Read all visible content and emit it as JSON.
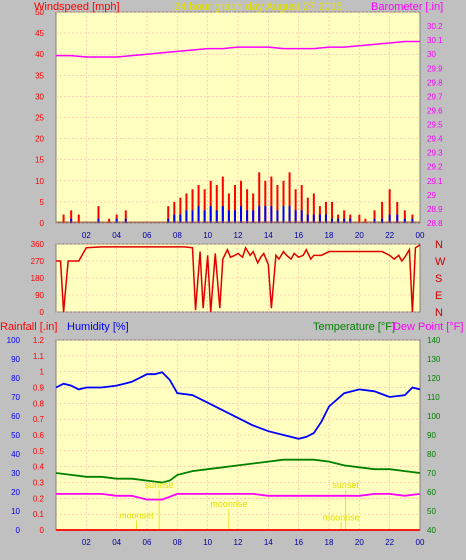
{
  "header": {
    "left_title": "Windspeed [mph]",
    "center_title": "24 hour graph day   August 27 2015",
    "right_title": "Barometer [.in]"
  },
  "bottom_header": {
    "rainfall": "Rainfall [.in]",
    "humidity": "Humidity [%]",
    "temperature": "Temperature [°F]",
    "dewpoint": "Dew Point [°F]"
  },
  "hour_ticks": [
    "02",
    "04",
    "06",
    "08",
    "10",
    "12",
    "14",
    "16",
    "18",
    "20",
    "22",
    "00"
  ],
  "annotations": [
    {
      "text": "sunrise",
      "hour": 6.8,
      "value": 22
    },
    {
      "text": "sunset",
      "hour": 19.1,
      "value": 22
    },
    {
      "text": "moonset",
      "hour": 5.3,
      "value": 6
    },
    {
      "text": "moonrise",
      "hour": 11.4,
      "value": 12
    },
    {
      "text": "moonrise",
      "hour": 18.8,
      "value": 5
    }
  ],
  "colors": {
    "background": "#c0c0c0",
    "plot": "#ffffc0",
    "grid": "#ffb0b0",
    "windspeed": "#ff0000",
    "gust": "#ff0000",
    "wind_avg": "#0000ff",
    "barometer": "#ff00ff",
    "direction": "#e00000",
    "humidity": "#0000ff",
    "temperature": "#008000",
    "dewpoint": "#ff00ff",
    "annotation": "#e0e000",
    "left_label": "#ff0000",
    "right_label": "#ff00ff"
  },
  "chart_data": [
    {
      "type": "line",
      "title": "24 hour graph day   August 27 2015",
      "ylabel": "Windspeed [mph]",
      "y2label": "Barometer [.in]",
      "xlim": [
        0,
        24
      ],
      "ylim": [
        0,
        50
      ],
      "y_ticks": [
        0,
        5,
        10,
        15,
        20,
        25,
        30,
        35,
        40,
        45,
        50
      ],
      "y2lim": [
        28.8,
        30.3
      ],
      "y2_ticks": [
        "28.8",
        "28.9",
        "29",
        "29.1",
        "29.2",
        "29.3",
        "29.4",
        "29.5",
        "29.6",
        "29.7",
        "29.8",
        "29.9",
        "30",
        "30.1",
        "30.2"
      ],
      "grid": true,
      "series": [
        {
          "name": "Barometer",
          "axis": "y2",
          "x": [
            0,
            1,
            2,
            3,
            4,
            5,
            6,
            7,
            8,
            9,
            10,
            11,
            12,
            13,
            14,
            15,
            16,
            17,
            18,
            19,
            20,
            21,
            22,
            23,
            24
          ],
          "values": [
            29.99,
            29.99,
            29.98,
            29.98,
            29.98,
            29.99,
            30.0,
            30.01,
            30.02,
            30.03,
            30.04,
            30.04,
            30.05,
            30.05,
            30.05,
            30.04,
            30.04,
            30.04,
            30.05,
            30.05,
            30.06,
            30.07,
            30.08,
            30.09,
            30.09
          ]
        },
        {
          "name": "Wind Gust",
          "axis": "y",
          "x": [
            0.5,
            1,
            1.5,
            2,
            2.8,
            3.5,
            4,
            4.6,
            7.4,
            7.8,
            8.2,
            8.6,
            9,
            9.4,
            9.8,
            10.2,
            10.6,
            11,
            11.4,
            11.8,
            12.2,
            12.6,
            13,
            13.4,
            13.8,
            14.2,
            14.6,
            15,
            15.4,
            15.8,
            16.2,
            16.6,
            17,
            17.4,
            17.8,
            18.2,
            18.6,
            19,
            19.4,
            20,
            20.4,
            21,
            21.5,
            22,
            22.5,
            23,
            23.5
          ],
          "values": [
            2,
            3,
            2,
            0,
            4,
            1,
            2,
            3,
            4,
            5,
            6,
            7,
            8,
            9,
            8,
            10,
            9,
            11,
            7,
            9,
            10,
            8,
            7,
            12,
            10,
            11,
            9,
            10,
            12,
            8,
            9,
            6,
            7,
            4,
            5,
            5,
            2,
            3,
            2,
            2,
            1,
            3,
            5,
            8,
            5,
            3,
            2
          ]
        },
        {
          "name": "Wind Speed",
          "axis": "y",
          "x": [
            0.5,
            1,
            1.5,
            2,
            2.8,
            3.5,
            4,
            4.6,
            7.4,
            7.8,
            8.2,
            8.6,
            9,
            9.4,
            9.8,
            10.2,
            10.6,
            11,
            11.4,
            11.8,
            12.2,
            12.6,
            13,
            13.4,
            13.8,
            14.2,
            14.6,
            15,
            15.4,
            15.8,
            16.2,
            16.6,
            17,
            17.4,
            17.8,
            18.2,
            18.6,
            19,
            19.4,
            20,
            20.4,
            21,
            21.5,
            22,
            22.5,
            23,
            23.5
          ],
          "values": [
            0,
            1,
            0,
            0,
            1,
            0,
            1,
            1,
            1,
            2,
            2,
            3,
            3,
            4,
            3,
            4,
            3,
            4,
            3,
            3,
            4,
            3,
            3,
            4,
            4,
            4,
            3,
            4,
            4,
            3,
            3,
            2,
            2,
            2,
            2,
            1,
            1,
            1,
            1,
            0,
            0,
            1,
            1,
            2,
            2,
            1,
            1
          ]
        }
      ]
    },
    {
      "type": "scatter",
      "ylabel": "",
      "xlim": [
        0,
        24
      ],
      "ylim": [
        0,
        360
      ],
      "y_ticks": [
        0,
        90,
        180,
        270,
        360
      ],
      "compass_labels": [
        "N",
        "W",
        "S",
        "E",
        "N"
      ],
      "grid": true,
      "series": [
        {
          "name": "Wind Direction",
          "x": [
            0,
            0.3,
            0.5,
            0.8,
            1,
            1.5,
            2,
            3,
            4,
            5,
            6,
            7,
            7.5,
            8.5,
            9,
            9.2,
            9.5,
            9.7,
            10,
            10.2,
            10.5,
            10.8,
            11,
            11.3,
            11.5,
            11.8,
            12,
            12.3,
            12.5,
            12.8,
            13,
            13.3,
            13.5,
            13.7,
            14,
            14.2,
            14.5,
            14.7,
            15,
            15.2,
            15.5,
            15.7,
            16,
            16.3,
            16.5,
            16.8,
            17,
            17.5,
            18,
            18.5,
            19,
            19.5,
            20,
            20.5,
            21,
            21.5,
            22,
            22.3,
            22.6,
            22.8,
            23,
            23.3,
            23.5,
            23.7,
            24
          ],
          "values": [
            270,
            270,
            0,
            270,
            270,
            270,
            340,
            345,
            345,
            345,
            345,
            345,
            345,
            345,
            340,
            10,
            320,
            20,
            300,
            0,
            310,
            20,
            280,
            330,
            290,
            300,
            310,
            290,
            340,
            300,
            320,
            260,
            290,
            310,
            250,
            20,
            300,
            280,
            320,
            300,
            280,
            310,
            290,
            300,
            330,
            280,
            300,
            300,
            320,
            320,
            320,
            320,
            320,
            320,
            320,
            320,
            300,
            280,
            300,
            270,
            290,
            330,
            0,
            340,
            355
          ]
        }
      ]
    },
    {
      "type": "line",
      "ylabel": "Rainfall [.in]",
      "y2label": "Humidity [%]",
      "y3label": "Temperature [°F]",
      "y4label": "Dew Point [°F]",
      "xlim": [
        0,
        24
      ],
      "rainfall_ticks": [
        "0",
        "0.1",
        "0.2",
        "0.3",
        "0.4",
        "0.5",
        "0.6",
        "0.7",
        "0.8",
        "0.9",
        "1",
        "1.1",
        "1.2"
      ],
      "humidity_ticks": [
        "0",
        "10",
        "20",
        "30",
        "40",
        "50",
        "60",
        "70",
        "80",
        "90",
        "100"
      ],
      "temperature_ticks": [
        "40",
        "50",
        "60",
        "70",
        "80",
        "90",
        "100",
        "110",
        "120",
        "130",
        "140"
      ],
      "humidity_lim": [
        0,
        100
      ],
      "temperature_lim": [
        40,
        140
      ],
      "grid": true,
      "series": [
        {
          "name": "Humidity",
          "axis": "humidity",
          "x": [
            0,
            0.5,
            1,
            1.5,
            2,
            3,
            4,
            5,
            6,
            6.5,
            7,
            7.5,
            8,
            9,
            10,
            11,
            12,
            13,
            14,
            15,
            15.5,
            16,
            16.5,
            17,
            17.5,
            18,
            19,
            20,
            21,
            22,
            23,
            23.5,
            24
          ],
          "values": [
            75,
            77,
            76,
            74,
            75,
            75,
            76,
            78,
            82,
            82,
            83,
            79,
            72,
            71,
            67,
            63,
            59,
            55,
            52,
            50,
            49,
            48,
            49,
            51,
            57,
            65,
            72,
            74,
            73,
            70,
            71,
            75,
            74
          ]
        },
        {
          "name": "Temperature",
          "axis": "temperature",
          "x": [
            0,
            1,
            2,
            3,
            4,
            5,
            6,
            7,
            7.5,
            8,
            9,
            10,
            11,
            12,
            13,
            14,
            15,
            16,
            17,
            18,
            19,
            20,
            21,
            22,
            23,
            24
          ],
          "values": [
            70,
            69,
            68,
            68,
            67,
            67,
            66,
            65,
            66,
            69,
            71,
            72,
            73,
            74,
            75,
            76,
            77,
            77,
            77,
            76,
            74,
            73,
            72,
            72,
            71,
            70
          ]
        },
        {
          "name": "Dew Point",
          "axis": "temperature",
          "x": [
            0,
            1,
            2,
            3,
            4,
            5,
            6,
            7,
            8,
            9,
            10,
            11,
            12,
            13,
            14,
            15,
            16,
            17,
            18,
            19,
            20,
            21,
            22,
            23,
            24
          ],
          "values": [
            59,
            59,
            59,
            59,
            58,
            58,
            56,
            56,
            59,
            59,
            59,
            59,
            59,
            59,
            58,
            58,
            58,
            58,
            58,
            58,
            58,
            59,
            59,
            58,
            59
          ]
        },
        {
          "name": "Rainfall",
          "axis": "rainfall",
          "x": [
            0,
            24
          ],
          "values": [
            0,
            0
          ]
        }
      ]
    }
  ]
}
